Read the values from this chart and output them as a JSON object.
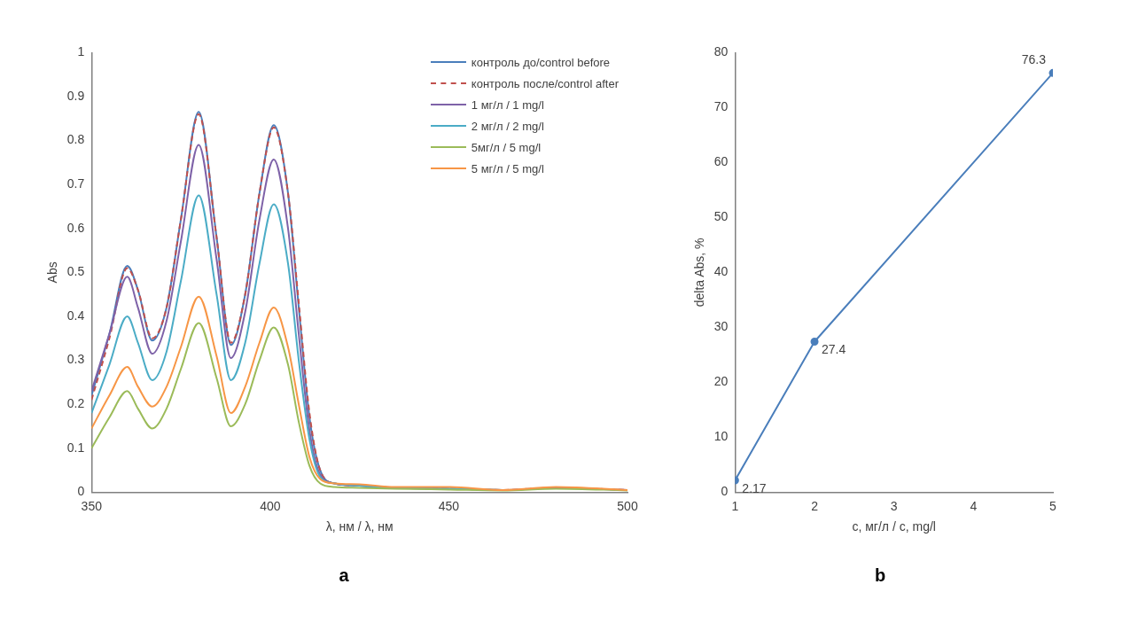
{
  "chart_data": [
    {
      "type": "line",
      "xlabel": "λ, нм / λ, нм",
      "ylabel": "Abs",
      "annotations": [
        "a"
      ],
      "legend": "top right",
      "xlim": [
        350,
        500
      ],
      "xticks": [
        350,
        400,
        450,
        500
      ],
      "ylim": [
        0,
        1
      ],
      "yticks": [
        0,
        0.1,
        0.2,
        0.3,
        0.4,
        0.5,
        0.6,
        0.7,
        0.8,
        0.9,
        1
      ],
      "grid": false,
      "marker": "none",
      "x": [
        350,
        355,
        360,
        363,
        367,
        371,
        375,
        380,
        385,
        389,
        393,
        397,
        401,
        405,
        408,
        411,
        414,
        418,
        425,
        435,
        450,
        465,
        480,
        500
      ],
      "series": [
        {
          "name": "контроль до/control before",
          "color": "#4a7ebb",
          "line_style": "solid",
          "values": [
            0.22,
            0.36,
            0.515,
            0.46,
            0.345,
            0.42,
            0.62,
            0.865,
            0.58,
            0.335,
            0.45,
            0.68,
            0.835,
            0.68,
            0.42,
            0.17,
            0.05,
            0.02,
            0.015,
            0.01,
            0.008,
            null,
            null,
            null
          ]
        },
        {
          "name": "контроль после/control after",
          "color": "#c0504d",
          "line_style": "dashed",
          "values": [
            0.21,
            0.35,
            0.51,
            0.46,
            0.35,
            0.42,
            0.62,
            0.86,
            0.58,
            0.34,
            0.45,
            0.68,
            0.83,
            0.68,
            0.43,
            0.18,
            0.05,
            0.02,
            0.015,
            0.01,
            0.008,
            0.005,
            0.01,
            0.005
          ]
        },
        {
          "name": "1 мг/л / 1 mg/l",
          "color": "#7e62a8",
          "line_style": "solid",
          "values": [
            0.23,
            0.36,
            0.49,
            0.42,
            0.315,
            0.39,
            0.57,
            0.79,
            0.53,
            0.305,
            0.41,
            0.62,
            0.757,
            0.6,
            0.36,
            0.14,
            0.04,
            0.02,
            0.015,
            0.01,
            0.008,
            0.005,
            0.01,
            0.005
          ]
        },
        {
          "name": "2 мг/л / 2 mg/l",
          "color": "#4bacc6",
          "line_style": "solid",
          "values": [
            0.18,
            0.29,
            0.4,
            0.34,
            0.255,
            0.32,
            0.48,
            0.675,
            0.45,
            0.255,
            0.34,
            0.52,
            0.655,
            0.52,
            0.3,
            0.12,
            0.035,
            0.02,
            0.015,
            0.01,
            0.008,
            0.005,
            null,
            null
          ]
        },
        {
          "name": "5мг/л / 5 mg/l",
          "color": "#9bbb59",
          "line_style": "solid",
          "values": [
            0.1,
            0.17,
            0.23,
            0.19,
            0.145,
            0.19,
            0.28,
            0.385,
            0.26,
            0.15,
            0.2,
            0.3,
            0.375,
            0.29,
            0.16,
            0.06,
            0.02,
            0.012,
            0.01,
            0.008,
            0.006,
            0.004,
            0.008,
            0.004
          ]
        },
        {
          "name": "5 мг/л / 5 mg/l",
          "color": "#f79646",
          "line_style": "solid",
          "values": [
            0.145,
            0.22,
            0.285,
            0.24,
            0.195,
            0.24,
            0.33,
            0.445,
            0.31,
            0.18,
            0.24,
            0.34,
            0.42,
            0.33,
            0.2,
            0.08,
            0.03,
            0.02,
            0.018,
            0.012,
            0.012,
            0.005,
            0.012,
            0.005
          ]
        }
      ]
    },
    {
      "type": "line",
      "xlabel": "c, мг/л / c, mg/l",
      "ylabel": "delta Abs, %",
      "annotations": [
        "b"
      ],
      "xlim": [
        1,
        5
      ],
      "xticks": [
        1,
        2,
        3,
        4,
        5
      ],
      "ylim": [
        0,
        80
      ],
      "yticks": [
        0,
        10,
        20,
        30,
        40,
        50,
        60,
        70,
        80
      ],
      "grid": false,
      "marker": "circle",
      "data_labels": true,
      "x": [
        1,
        2,
        5
      ],
      "series": [
        {
          "color": "#4a7ebb",
          "line_style": "solid",
          "values": [
            2.17,
            27.4,
            76.3
          ]
        }
      ]
    }
  ]
}
